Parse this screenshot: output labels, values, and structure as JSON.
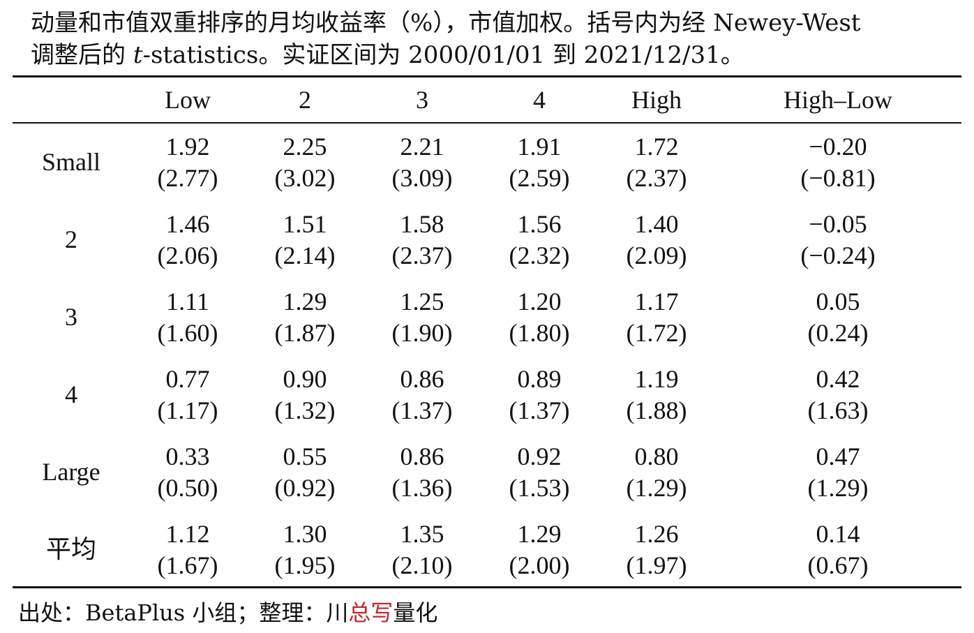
{
  "caption": {
    "line1": "动量和市值双重排序的月均收益率（%），市值加权。括号内为经 Newey-West",
    "line2_pre": "调整后的 ",
    "line2_italic": "t",
    "line2_post": "-statistics。实证区间为 2000/01/01 到 2021/12/31。"
  },
  "table": {
    "columns": [
      "Low",
      "2",
      "3",
      "4",
      "High",
      "High–Low"
    ],
    "rows": [
      {
        "label": "Small",
        "values": [
          "1.92",
          "2.25",
          "2.21",
          "1.91",
          "1.72",
          "−0.20"
        ],
        "tstats": [
          "(2.77)",
          "(3.02)",
          "(3.09)",
          "(2.59)",
          "(2.37)",
          "(−0.81)"
        ]
      },
      {
        "label": "2",
        "values": [
          "1.46",
          "1.51",
          "1.58",
          "1.56",
          "1.40",
          "−0.05"
        ],
        "tstats": [
          "(2.06)",
          "(2.14)",
          "(2.37)",
          "(2.32)",
          "(2.09)",
          "(−0.24)"
        ]
      },
      {
        "label": "3",
        "values": [
          "1.11",
          "1.29",
          "1.25",
          "1.20",
          "1.17",
          "0.05"
        ],
        "tstats": [
          "(1.60)",
          "(1.87)",
          "(1.90)",
          "(1.80)",
          "(1.72)",
          "(0.24)"
        ]
      },
      {
        "label": "4",
        "values": [
          "0.77",
          "0.90",
          "0.86",
          "0.89",
          "1.19",
          "0.42"
        ],
        "tstats": [
          "(1.17)",
          "(1.32)",
          "(1.37)",
          "(1.37)",
          "(1.88)",
          "(1.63)"
        ]
      },
      {
        "label": "Large",
        "values": [
          "0.33",
          "0.55",
          "0.86",
          "0.92",
          "0.80",
          "0.47"
        ],
        "tstats": [
          "(0.50)",
          "(0.92)",
          "(1.36)",
          "(1.53)",
          "(1.29)",
          "(1.29)"
        ]
      },
      {
        "label": "平均",
        "values": [
          "1.12",
          "1.30",
          "1.35",
          "1.29",
          "1.26",
          "0.14"
        ],
        "tstats": [
          "(1.67)",
          "(1.95)",
          "(2.10)",
          "(2.00)",
          "(1.97)",
          "(0.67)"
        ]
      }
    ]
  },
  "footer": {
    "prefix": "出处：BetaPlus 小组；整理：川",
    "highlight": "总写",
    "suffix": "量化",
    "highlight_color": "#c0282d"
  }
}
